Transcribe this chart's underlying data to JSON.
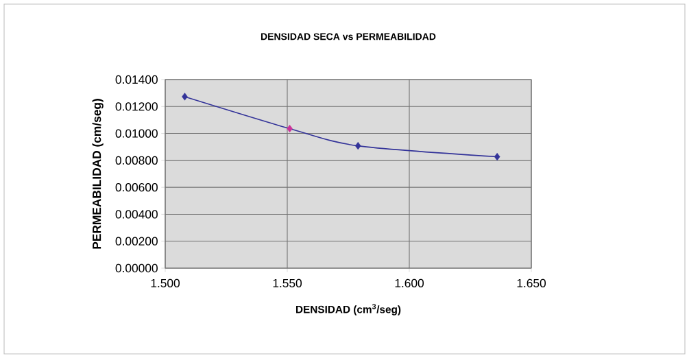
{
  "chart_data": {
    "type": "line",
    "title": "DENSIDAD SECA vs PERMEABILIDAD",
    "xlabel": "DENSIDAD (cm$^{3}$/seg)",
    "ylabel": "PERMEABILIDAD (cm/seg)",
    "x": [
      1.508,
      1.551,
      1.579,
      1.636
    ],
    "series": [
      {
        "color": "#333399",
        "colors": [
          "#333399",
          "#cc3399",
          "#333399",
          "#333399"
        ],
        "values": [
          0.01273,
          0.01036,
          0.00908,
          0.00827
        ]
      }
    ],
    "xlim": [
      1.5,
      1.65
    ],
    "ylim": [
      0,
      0.014
    ],
    "xticks": [
      {
        "value": 1.5,
        "label": "1.500"
      },
      {
        "value": 1.55,
        "label": "1.550"
      },
      {
        "value": 1.6,
        "label": "1.600"
      },
      {
        "value": 1.65,
        "label": "1.650"
      }
    ],
    "yticks": [
      {
        "value": 0,
        "label": "0.00000"
      },
      {
        "value": 0.002,
        "label": "0.00200"
      },
      {
        "value": 0.004,
        "label": "0.00400"
      },
      {
        "value": 0.006,
        "label": "0.00600"
      },
      {
        "value": 0.008,
        "label": "0.00800"
      },
      {
        "value": 0.01,
        "label": "0.01000"
      },
      {
        "value": 0.012,
        "label": "0.01200"
      },
      {
        "value": 0.014,
        "label": "0.01400"
      }
    ],
    "grid": true,
    "marker": "diamond",
    "line_style": "solid"
  }
}
